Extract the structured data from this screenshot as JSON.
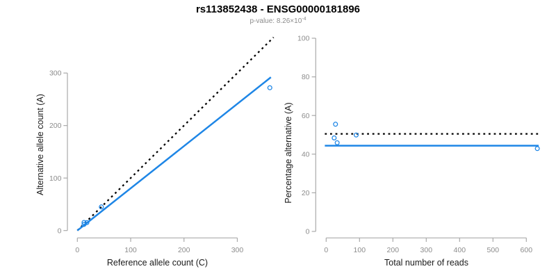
{
  "header": {
    "title": "rs113852438 - ENSG00000181896",
    "pvalue_label": "p-value: 8.26×10",
    "pvalue_exponent": "-4"
  },
  "colors": {
    "line_blue": "#1E86E6",
    "line_dotted_black": "#000000",
    "axis": "#A9A9A9",
    "tick_label": "#8C8C8C",
    "axis_title": "#1A1A1A",
    "subtitle": "#8C8C8C"
  },
  "chart_data": [
    {
      "type": "scatter",
      "name": "allele-count-scatter",
      "title": "rs113852438 - ENSG00000181896",
      "subtitle": "p-value: 8.26×10^-4",
      "xlabel": "Reference allele count (C)",
      "ylabel": "Alternative allele count (A)",
      "xticks": [
        0,
        100,
        200,
        300
      ],
      "yticks": [
        0,
        100,
        200,
        300
      ],
      "xlim": [
        0,
        370
      ],
      "ylim": [
        0,
        370
      ],
      "grid": false,
      "legend": false,
      "points": [
        [
          12.4,
          11.6
        ],
        [
          12.5,
          15.5
        ],
        [
          17.9,
          15.1
        ],
        [
          45,
          45
        ],
        [
          361,
          272
        ]
      ],
      "lines": [
        {
          "name": "identity-line",
          "style": "dotted",
          "color": "#000000",
          "from": [
            0,
            0
          ],
          "to": [
            368,
            368
          ]
        },
        {
          "name": "fit-line",
          "style": "solid",
          "color": "#1E86E6",
          "from": [
            0,
            0
          ],
          "to": [
            363,
            292
          ]
        }
      ]
    },
    {
      "type": "scatter",
      "name": "percentage-vs-reads-scatter",
      "xlabel": "Total number of reads",
      "ylabel": "Percentage alternative (A)",
      "xticks": [
        0,
        100,
        200,
        300,
        400,
        500,
        600
      ],
      "yticks": [
        0,
        20,
        40,
        60,
        80,
        100
      ],
      "xlim": [
        -4,
        637
      ],
      "ylim": [
        0,
        100
      ],
      "grid": false,
      "legend": false,
      "points": [
        [
          24,
          48.4
        ],
        [
          28,
          55.5
        ],
        [
          33,
          45.9
        ],
        [
          90,
          49.9
        ],
        [
          633,
          42.9
        ]
      ],
      "lines": [
        {
          "name": "expected-50pct-line",
          "style": "dotted",
          "color": "#000000",
          "y": 50.5
        },
        {
          "name": "mean-percentage-line",
          "style": "solid",
          "color": "#1E86E6",
          "y": 44.4
        }
      ]
    }
  ]
}
